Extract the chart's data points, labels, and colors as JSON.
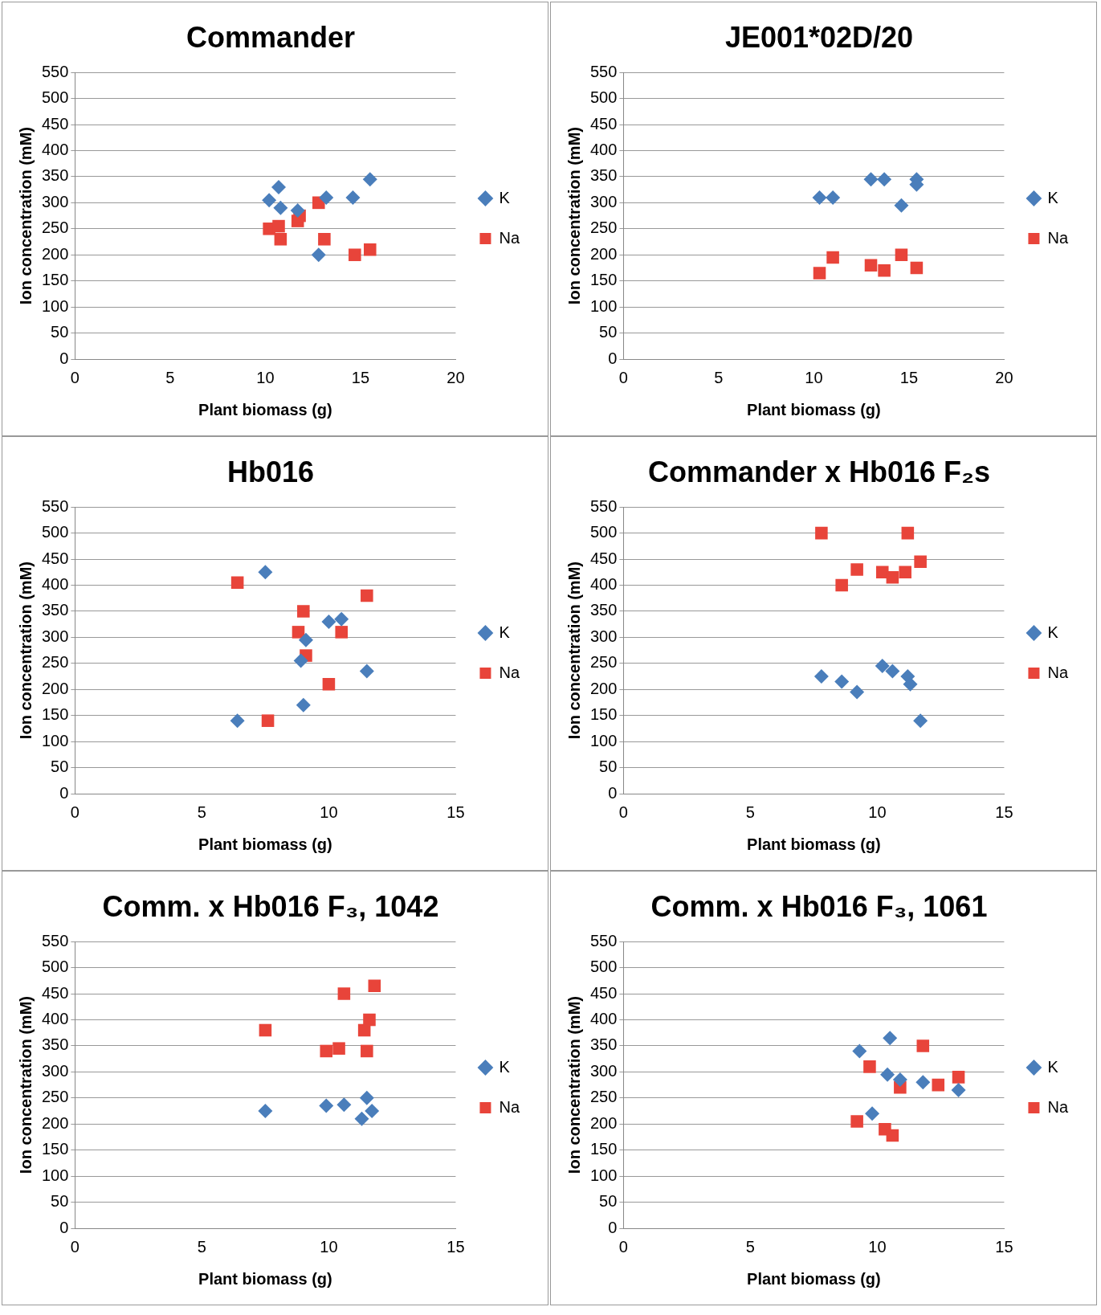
{
  "chart_data": [
    {
      "type": "scatter",
      "title": "Commander",
      "xlabel": "Plant biomass (g)",
      "ylabel": "Ion concentration (mM)",
      "xlim": [
        0,
        20
      ],
      "xticks": [
        0,
        5,
        10,
        15,
        20
      ],
      "ylim": [
        0,
        550
      ],
      "yticks": [
        0,
        50,
        100,
        150,
        200,
        250,
        300,
        350,
        400,
        450,
        500,
        550
      ],
      "grid": "y",
      "legend": "right",
      "series": [
        {
          "name": "K",
          "color": "#4a7ebb",
          "marker": "diamond",
          "x": [
            10.2,
            10.7,
            10.8,
            11.7,
            13.2,
            14.6,
            15.5,
            12.8
          ],
          "values": [
            305,
            330,
            290,
            285,
            310,
            310,
            345,
            200
          ]
        },
        {
          "name": "Na",
          "color": "#e8443a",
          "marker": "square",
          "x": [
            10.2,
            10.7,
            10.8,
            11.7,
            11.8,
            12.8,
            13.1,
            14.7,
            15.5
          ],
          "values": [
            250,
            255,
            230,
            265,
            275,
            300,
            230,
            200,
            210
          ]
        }
      ]
    },
    {
      "type": "scatter",
      "title": "JE001*02D/20",
      "xlabel": "Plant biomass (g)",
      "ylabel": "Ion concentration (mM)",
      "xlim": [
        0,
        20
      ],
      "xticks": [
        0,
        5,
        10,
        15,
        20
      ],
      "ylim": [
        0,
        550
      ],
      "yticks": [
        0,
        50,
        100,
        150,
        200,
        250,
        300,
        350,
        400,
        450,
        500,
        550
      ],
      "grid": "y",
      "legend": "right",
      "series": [
        {
          "name": "K",
          "color": "#4a7ebb",
          "marker": "diamond",
          "x": [
            10.3,
            11,
            13,
            13.7,
            14.6,
            15.4,
            15.4
          ],
          "values": [
            310,
            310,
            345,
            345,
            295,
            345,
            335
          ]
        },
        {
          "name": "Na",
          "color": "#e8443a",
          "marker": "square",
          "x": [
            10.3,
            11,
            13,
            13.7,
            14.6,
            15.4
          ],
          "values": [
            165,
            195,
            180,
            170,
            200,
            175
          ]
        }
      ]
    },
    {
      "type": "scatter",
      "title": "Hb016",
      "xlabel": "Plant biomass (g)",
      "ylabel": "Ion concentration (mM)",
      "xlim": [
        0,
        15
      ],
      "xticks": [
        0,
        5,
        10,
        15
      ],
      "ylim": [
        0,
        550
      ],
      "yticks": [
        0,
        50,
        100,
        150,
        200,
        250,
        300,
        350,
        400,
        450,
        500,
        550
      ],
      "grid": "y",
      "legend": "right",
      "series": [
        {
          "name": "K",
          "color": "#4a7ebb",
          "marker": "diamond",
          "x": [
            7.5,
            6.4,
            9.1,
            8.9,
            10,
            10.5,
            9,
            11.5
          ],
          "values": [
            425,
            140,
            295,
            255,
            330,
            335,
            170,
            235
          ]
        },
        {
          "name": "Na",
          "color": "#e8443a",
          "marker": "square",
          "x": [
            6.4,
            9,
            8.8,
            9.1,
            10.5,
            11.5,
            10,
            7.6
          ],
          "values": [
            405,
            350,
            310,
            265,
            310,
            380,
            210,
            140
          ]
        }
      ]
    },
    {
      "type": "scatter",
      "title": "Commander x Hb016 F₂s",
      "xlabel": "Plant biomass (g)",
      "ylabel": "Ion concentration (mM)",
      "xlim": [
        0,
        15
      ],
      "xticks": [
        0,
        5,
        10,
        15
      ],
      "ylim": [
        0,
        550
      ],
      "yticks": [
        0,
        50,
        100,
        150,
        200,
        250,
        300,
        350,
        400,
        450,
        500,
        550
      ],
      "grid": "y",
      "legend": "right",
      "series": [
        {
          "name": "K",
          "color": "#4a7ebb",
          "marker": "diamond",
          "x": [
            7.8,
            8.6,
            9.2,
            10.2,
            10.6,
            11.2,
            11.3,
            11.7
          ],
          "values": [
            225,
            215,
            195,
            245,
            235,
            225,
            210,
            140
          ]
        },
        {
          "name": "Na",
          "color": "#e8443a",
          "marker": "square",
          "x": [
            7.8,
            11.2,
            9.2,
            8.6,
            10.2,
            10.6,
            11.1,
            11.7
          ],
          "values": [
            500,
            500,
            430,
            400,
            425,
            415,
            425,
            445
          ]
        }
      ]
    },
    {
      "type": "scatter",
      "title": "Comm. x Hb016 F₃, 1042",
      "xlabel": "Plant biomass (g)",
      "ylabel": "Ion concentration (mM)",
      "xlim": [
        0,
        15
      ],
      "xticks": [
        0,
        5,
        10,
        15
      ],
      "ylim": [
        0,
        550
      ],
      "yticks": [
        0,
        50,
        100,
        150,
        200,
        250,
        300,
        350,
        400,
        450,
        500,
        550
      ],
      "grid": "y",
      "legend": "right",
      "series": [
        {
          "name": "K",
          "color": "#4a7ebb",
          "marker": "diamond",
          "x": [
            7.5,
            9.9,
            10.6,
            11.5,
            11.7,
            11.3
          ],
          "values": [
            225,
            235,
            237,
            250,
            225,
            210
          ]
        },
        {
          "name": "Na",
          "color": "#e8443a",
          "marker": "square",
          "x": [
            7.5,
            10.6,
            11.8,
            11.6,
            11.4,
            9.9,
            10.4,
            11.5
          ],
          "values": [
            380,
            450,
            465,
            400,
            380,
            340,
            345,
            340
          ]
        }
      ]
    },
    {
      "type": "scatter",
      "title": "Comm. x Hb016 F₃, 1061",
      "xlabel": "Plant biomass (g)",
      "ylabel": "Ion concentration (mM)",
      "xlim": [
        0,
        15
      ],
      "xticks": [
        0,
        5,
        10,
        15
      ],
      "ylim": [
        0,
        550
      ],
      "yticks": [
        0,
        50,
        100,
        150,
        200,
        250,
        300,
        350,
        400,
        450,
        500,
        550
      ],
      "grid": "y",
      "legend": "right",
      "series": [
        {
          "name": "K",
          "color": "#4a7ebb",
          "marker": "diamond",
          "x": [
            9.3,
            10.5,
            10.4,
            10.9,
            11.8,
            13.2,
            9.8
          ],
          "values": [
            340,
            365,
            295,
            285,
            280,
            265,
            220
          ]
        },
        {
          "name": "Na",
          "color": "#e8443a",
          "marker": "square",
          "x": [
            9.2,
            9.7,
            10.9,
            11.8,
            12.4,
            13.2,
            10.3,
            10.6
          ],
          "values": [
            205,
            310,
            270,
            350,
            275,
            290,
            190,
            178
          ]
        }
      ]
    }
  ]
}
